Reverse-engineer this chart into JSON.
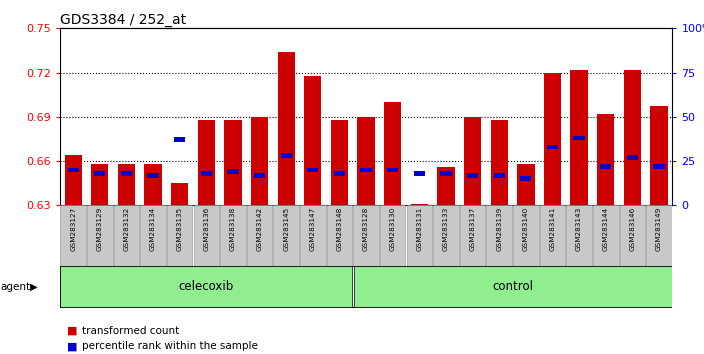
{
  "title": "GDS3384 / 252_at",
  "samples": [
    "GSM283127",
    "GSM283129",
    "GSM283132",
    "GSM283134",
    "GSM283135",
    "GSM283136",
    "GSM283138",
    "GSM283142",
    "GSM283145",
    "GSM283147",
    "GSM283148",
    "GSM283128",
    "GSM283130",
    "GSM283131",
    "GSM283133",
    "GSM283137",
    "GSM283139",
    "GSM283140",
    "GSM283141",
    "GSM283143",
    "GSM283144",
    "GSM283146",
    "GSM283149"
  ],
  "transformed_count": [
    0.664,
    0.658,
    0.658,
    0.658,
    0.645,
    0.688,
    0.688,
    0.69,
    0.734,
    0.718,
    0.688,
    0.69,
    0.7,
    0.631,
    0.656,
    0.69,
    0.688,
    0.658,
    0.72,
    0.722,
    0.692,
    0.722,
    0.697
  ],
  "percentile_rank": [
    0.2,
    0.18,
    0.18,
    0.17,
    0.37,
    0.18,
    0.19,
    0.17,
    0.28,
    0.2,
    0.18,
    0.2,
    0.2,
    0.18,
    0.18,
    0.17,
    0.17,
    0.15,
    0.33,
    0.38,
    0.22,
    0.27,
    0.22
  ],
  "celecoxib_count": 11,
  "control_count": 12,
  "y_min": 0.63,
  "y_max": 0.75,
  "y_ticks": [
    0.63,
    0.66,
    0.69,
    0.72,
    0.75
  ],
  "y_right_ticks": [
    0,
    25,
    50,
    75,
    100
  ],
  "bar_color": "#CC0000",
  "percentile_color": "#0000CC",
  "celecoxib_color": "#90EE90",
  "control_color": "#90EE90",
  "tick_label_area_color": "#C8C8C8",
  "agent_label": "agent",
  "celecoxib_label": "celecoxib",
  "control_label": "control",
  "legend_transformed": "transformed count",
  "legend_percentile": "percentile rank within the sample"
}
